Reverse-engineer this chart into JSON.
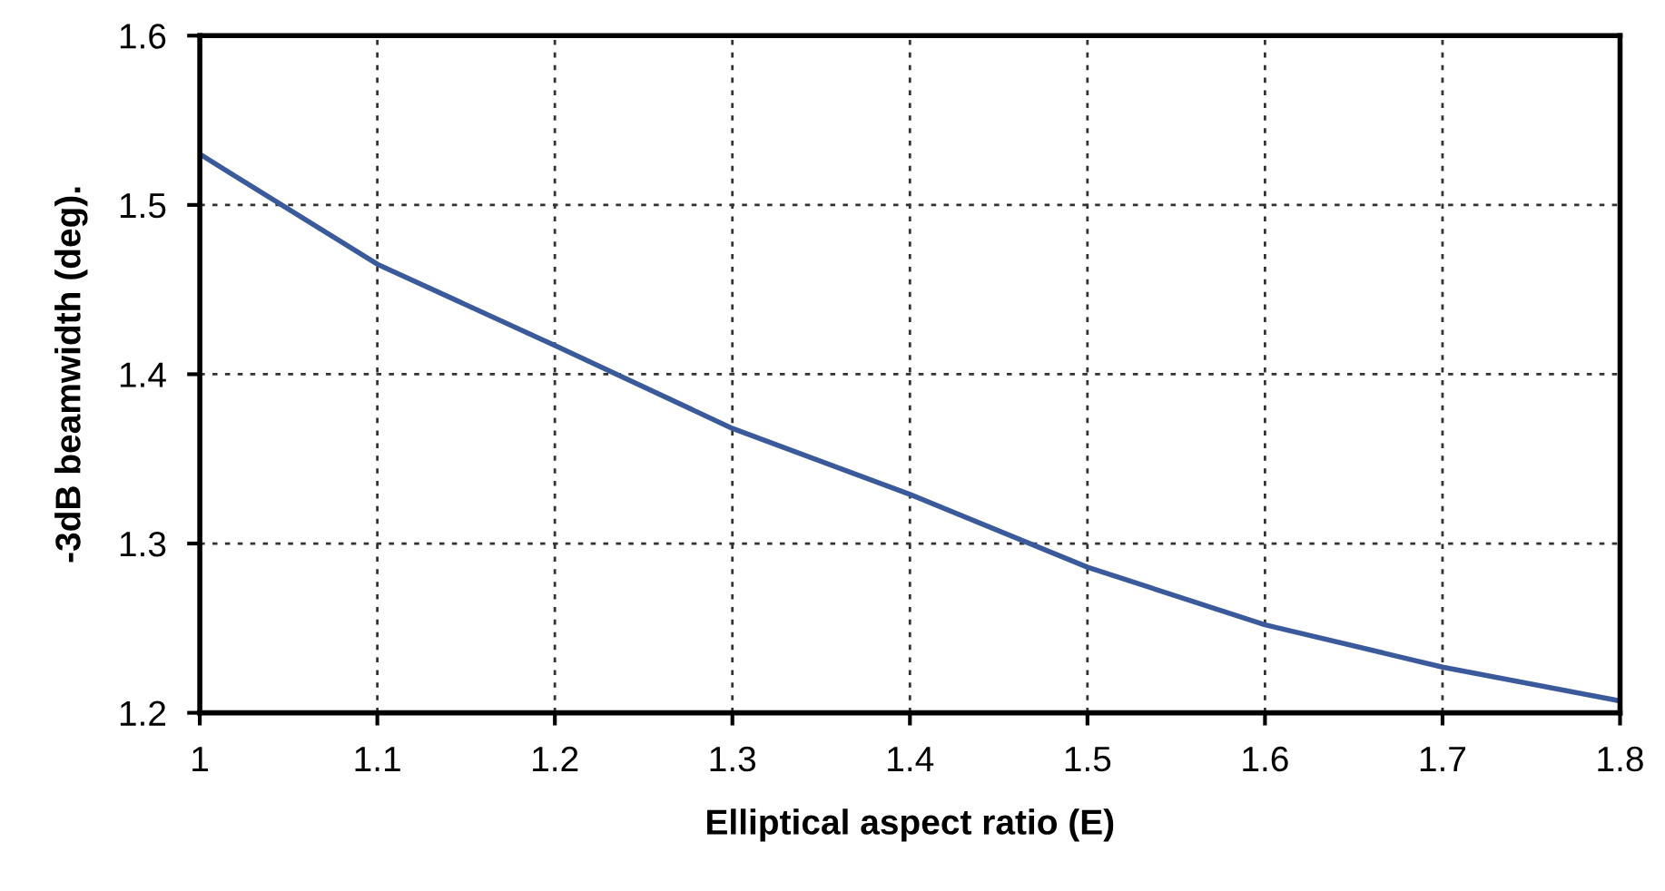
{
  "chart_data": {
    "type": "line",
    "xlabel": "Elliptical aspect ratio (E)",
    "ylabel": "-3dB beamwidth (deg).",
    "x": [
      1.0,
      1.1,
      1.2,
      1.3,
      1.4,
      1.5,
      1.6,
      1.7,
      1.8
    ],
    "series": [
      {
        "color": "#3a5a9c",
        "values": [
          1.53,
          1.465,
          1.417,
          1.368,
          1.329,
          1.286,
          1.252,
          1.227,
          1.207
        ]
      }
    ],
    "xlim": [
      1,
      1.8
    ],
    "xticks": [
      1,
      1.1,
      1.2,
      1.3,
      1.4,
      1.5,
      1.6,
      1.7,
      1.8
    ],
    "ylim": [
      1.2,
      1.6
    ],
    "yticks": [
      1.2,
      1.3,
      1.4,
      1.5,
      1.6
    ],
    "grid": true,
    "marker": "none",
    "line_style": "solid"
  }
}
